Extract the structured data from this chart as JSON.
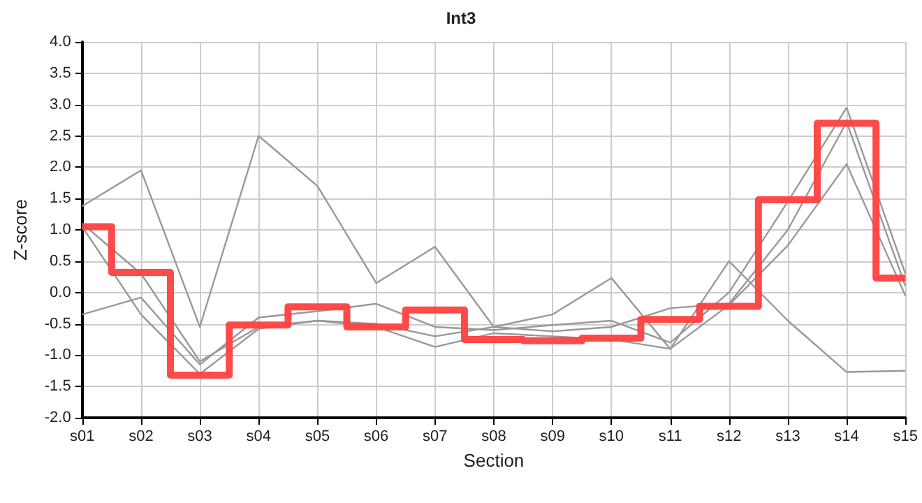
{
  "chart_data": {
    "type": "line",
    "title": "Int3",
    "xlabel": "Section",
    "ylabel": "Z-score",
    "categories": [
      "s01",
      "s02",
      "s03",
      "s04",
      "s05",
      "s06",
      "s07",
      "s08",
      "s09",
      "s10",
      "s11",
      "s12",
      "s13",
      "s14",
      "s15"
    ],
    "ylim": [
      -2,
      4
    ],
    "yticks": [
      {
        "value": -2,
        "label": "-2.0"
      },
      {
        "value": -1.5,
        "label": "-1.5"
      },
      {
        "value": -1,
        "label": "-1.0"
      },
      {
        "value": -0.5,
        "label": "-0.5"
      },
      {
        "value": 0,
        "label": "0.0"
      },
      {
        "value": 0.5,
        "label": "0.5"
      },
      {
        "value": 1,
        "label": "1.0"
      },
      {
        "value": 1.5,
        "label": "1.5"
      },
      {
        "value": 2,
        "label": "2.0"
      },
      {
        "value": 2.5,
        "label": "2.5"
      },
      {
        "value": 3,
        "label": "3.0"
      },
      {
        "value": 3.5,
        "label": "3.5"
      },
      {
        "value": 4,
        "label": "4.0"
      }
    ],
    "grid": true,
    "marker": "none",
    "series": [
      {
        "color": "#999999",
        "values": [
          1.38,
          1.95,
          -0.55,
          2.5,
          1.7,
          0.15,
          0.73,
          -0.55,
          -0.35,
          0.23,
          -0.9,
          0.5,
          -0.45,
          -1.27,
          -1.25
        ]
      },
      {
        "color": "#999999",
        "values": [
          -0.35,
          -0.08,
          -1.15,
          -0.4,
          -0.3,
          -0.18,
          -0.55,
          -0.6,
          -0.52,
          -0.45,
          -0.8,
          0.0,
          1.45,
          2.95,
          0.3
        ]
      },
      {
        "color": "#999999",
        "values": [
          1.1,
          0.3,
          -1.1,
          -0.55,
          -0.45,
          -0.5,
          -0.7,
          -0.55,
          -0.62,
          -0.55,
          -0.25,
          -0.18,
          1.0,
          2.72,
          0.1
        ]
      },
      {
        "color": "#999999",
        "values": [
          1.05,
          -0.35,
          -1.3,
          -0.58,
          -0.45,
          -0.55,
          -0.87,
          -0.65,
          -0.7,
          -0.75,
          -0.9,
          -0.2,
          0.75,
          2.05,
          -0.05
        ]
      },
      {
        "type": "step",
        "color": "#ff4040",
        "values": [
          1.05,
          0.32,
          -1.32,
          -0.52,
          -0.23,
          -0.55,
          -0.28,
          -0.75,
          -0.77,
          -0.73,
          -0.43,
          -0.22,
          1.48,
          2.7,
          0.23
        ]
      }
    ]
  }
}
